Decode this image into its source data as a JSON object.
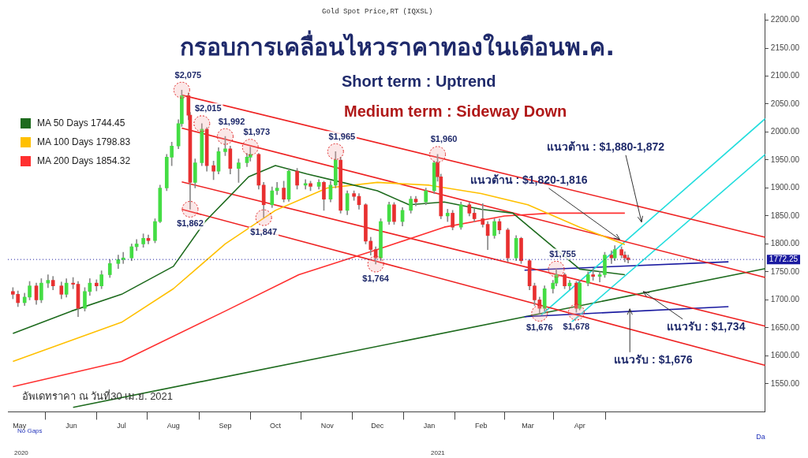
{
  "chart_data": {
    "type": "candlestick",
    "subtitle": "Gold Spot Price,RT (IQXSL)",
    "title": "กรอบการเคลื่อนไหวราคาทองในเดือนพ.ค.",
    "xlabel": "Da",
    "legend": "top left",
    "grid": false,
    "xlim": [
      "2020-04-24",
      "2021-07-21"
    ],
    "ylim": [
      1500,
      2212
    ],
    "xticks": [
      {
        "value": "2020-05-01",
        "label": "May"
      },
      {
        "value": "2020-06-01",
        "label": "Jun"
      },
      {
        "value": "2020-07-01",
        "label": "Jul"
      },
      {
        "value": "2020-08-01",
        "label": "Aug"
      },
      {
        "value": "2020-09-01",
        "label": "Sep"
      },
      {
        "value": "2020-10-01",
        "label": "Oct"
      },
      {
        "value": "2020-11-01",
        "label": "Nov"
      },
      {
        "value": "2020-12-01",
        "label": "Dec"
      },
      {
        "value": "2021-01-01",
        "label": "Jan"
      },
      {
        "value": "2021-02-01",
        "label": "Feb"
      },
      {
        "value": "2021-03-01",
        "label": "Mar"
      },
      {
        "value": "2021-04-01",
        "label": "Apr"
      }
    ],
    "yticks": [
      {
        "value": 1550,
        "label": "1550.00"
      },
      {
        "value": 1600,
        "label": "1600.00"
      },
      {
        "value": 1650,
        "label": "1650.00"
      },
      {
        "value": 1700,
        "label": "1700.00"
      },
      {
        "value": 1750,
        "label": "1750.00"
      },
      {
        "value": 1800,
        "label": "1800.00"
      },
      {
        "value": 1850,
        "label": "1850.00"
      },
      {
        "value": 1900,
        "label": "1900.00"
      },
      {
        "value": 1950,
        "label": "1950.00"
      },
      {
        "value": 2000,
        "label": "2000.00"
      },
      {
        "value": 2050,
        "label": "2050.00"
      },
      {
        "value": 2100,
        "label": "2100.00"
      },
      {
        "value": 2150,
        "label": "2150.00"
      },
      {
        "value": 2200,
        "label": "2200.00"
      }
    ],
    "x": [
      "2020-04-27",
      "2020-04-30",
      "2020-05-04",
      "2020-05-07",
      "2020-05-11",
      "2020-05-14",
      "2020-05-18",
      "2020-05-21",
      "2020-05-26",
      "2020-05-29",
      "2020-06-02",
      "2020-06-05",
      "2020-06-09",
      "2020-06-12",
      "2020-06-16",
      "2020-06-19",
      "2020-06-24",
      "2020-06-29",
      "2020-07-02",
      "2020-07-07",
      "2020-07-10",
      "2020-07-14",
      "2020-07-17",
      "2020-07-21",
      "2020-07-24",
      "2020-07-28",
      "2020-07-31",
      "2020-08-04",
      "2020-08-06",
      "2020-08-10",
      "2020-08-11",
      "2020-08-14",
      "2020-08-18",
      "2020-08-21",
      "2020-08-25",
      "2020-08-28",
      "2020-09-01",
      "2020-09-04",
      "2020-09-09",
      "2020-09-14",
      "2020-09-16",
      "2020-09-21",
      "2020-09-24",
      "2020-09-29",
      "2020-10-02",
      "2020-10-06",
      "2020-10-09",
      "2020-10-14",
      "2020-10-19",
      "2020-10-22",
      "2020-10-27",
      "2020-10-30",
      "2020-11-03",
      "2020-11-06",
      "2020-11-09",
      "2020-11-13",
      "2020-11-17",
      "2020-11-20",
      "2020-11-24",
      "2020-11-27",
      "2020-11-30",
      "2020-12-03",
      "2020-12-08",
      "2020-12-11",
      "2020-12-16",
      "2020-12-21",
      "2020-12-24",
      "2020-12-30",
      "2021-01-04",
      "2021-01-06",
      "2021-01-08",
      "2021-01-12",
      "2021-01-15",
      "2021-01-20",
      "2021-01-25",
      "2021-01-28",
      "2021-02-02",
      "2021-02-05",
      "2021-02-09",
      "2021-02-12",
      "2021-02-17",
      "2021-02-22",
      "2021-02-25",
      "2021-03-02",
      "2021-03-05",
      "2021-03-08",
      "2021-03-11",
      "2021-03-16",
      "2021-03-18",
      "2021-03-23",
      "2021-03-26",
      "2021-03-30",
      "2021-04-01",
      "2021-04-06",
      "2021-04-09",
      "2021-04-13",
      "2021-04-16",
      "2021-04-20",
      "2021-04-22",
      "2021-04-26",
      "2021-04-28",
      "2021-04-30"
    ],
    "ohlc": [
      [
        1715,
        1722,
        1702,
        1710
      ],
      [
        1710,
        1716,
        1688,
        1695
      ],
      [
        1695,
        1712,
        1690,
        1705
      ],
      [
        1705,
        1733,
        1700,
        1725
      ],
      [
        1725,
        1730,
        1692,
        1700
      ],
      [
        1700,
        1738,
        1695,
        1730
      ],
      [
        1730,
        1745,
        1722,
        1735
      ],
      [
        1735,
        1742,
        1718,
        1725
      ],
      [
        1725,
        1732,
        1702,
        1710
      ],
      [
        1710,
        1738,
        1705,
        1730
      ],
      [
        1730,
        1740,
        1720,
        1728
      ],
      [
        1728,
        1733,
        1670,
        1685
      ],
      [
        1685,
        1722,
        1680,
        1715
      ],
      [
        1715,
        1738,
        1708,
        1730
      ],
      [
        1730,
        1736,
        1716,
        1725
      ],
      [
        1725,
        1752,
        1720,
        1745
      ],
      [
        1745,
        1772,
        1740,
        1765
      ],
      [
        1765,
        1780,
        1756,
        1772
      ],
      [
        1772,
        1785,
        1765,
        1775
      ],
      [
        1775,
        1800,
        1770,
        1795
      ],
      [
        1795,
        1808,
        1788,
        1800
      ],
      [
        1800,
        1818,
        1794,
        1810
      ],
      [
        1810,
        1816,
        1800,
        1806
      ],
      [
        1806,
        1845,
        1802,
        1840
      ],
      [
        1840,
        1905,
        1838,
        1900
      ],
      [
        1900,
        1960,
        1895,
        1955
      ],
      [
        1955,
        1982,
        1940,
        1975
      ],
      [
        1975,
        2022,
        1970,
        2015
      ],
      [
        2015,
        2075,
        2010,
        2065
      ],
      [
        2065,
        2070,
        2022,
        2030
      ],
      [
        2030,
        2035,
        1862,
        1910
      ],
      [
        1910,
        1952,
        1900,
        1945
      ],
      [
        1945,
        2015,
        1940,
        2005
      ],
      [
        2005,
        2008,
        1930,
        1940
      ],
      [
        1940,
        1948,
        1915,
        1930
      ],
      [
        1930,
        1972,
        1925,
        1965
      ],
      [
        1965,
        1992,
        1958,
        1970
      ],
      [
        1970,
        1975,
        1925,
        1935
      ],
      [
        1935,
        1952,
        1910,
        1945
      ],
      [
        1945,
        1962,
        1938,
        1955
      ],
      [
        1955,
        1973,
        1948,
        1960
      ],
      [
        1960,
        1962,
        1898,
        1905
      ],
      [
        1905,
        1910,
        1847,
        1870
      ],
      [
        1870,
        1902,
        1865,
        1895
      ],
      [
        1895,
        1910,
        1888,
        1900
      ],
      [
        1900,
        1912,
        1875,
        1880
      ],
      [
        1880,
        1935,
        1876,
        1930
      ],
      [
        1930,
        1935,
        1898,
        1905
      ],
      [
        1905,
        1915,
        1898,
        1908
      ],
      [
        1908,
        1912,
        1895,
        1903
      ],
      [
        1903,
        1915,
        1898,
        1910
      ],
      [
        1910,
        1912,
        1860,
        1880
      ],
      [
        1880,
        1912,
        1875,
        1905
      ],
      [
        1905,
        1965,
        1900,
        1950
      ],
      [
        1950,
        1955,
        1855,
        1860
      ],
      [
        1860,
        1895,
        1852,
        1890
      ],
      [
        1890,
        1895,
        1878,
        1885
      ],
      [
        1885,
        1890,
        1862,
        1870
      ],
      [
        1870,
        1872,
        1800,
        1805
      ],
      [
        1805,
        1812,
        1780,
        1790
      ],
      [
        1790,
        1795,
        1764,
        1775
      ],
      [
        1775,
        1845,
        1770,
        1840
      ],
      [
        1840,
        1875,
        1835,
        1870
      ],
      [
        1870,
        1874,
        1835,
        1840
      ],
      [
        1840,
        1865,
        1832,
        1860
      ],
      [
        1860,
        1885,
        1855,
        1880
      ],
      [
        1880,
        1885,
        1868,
        1875
      ],
      [
        1875,
        1900,
        1870,
        1895
      ],
      [
        1895,
        1948,
        1890,
        1945
      ],
      [
        1945,
        1960,
        1912,
        1920
      ],
      [
        1920,
        1925,
        1845,
        1850
      ],
      [
        1850,
        1862,
        1840,
        1855
      ],
      [
        1855,
        1860,
        1825,
        1830
      ],
      [
        1830,
        1875,
        1826,
        1870
      ],
      [
        1870,
        1874,
        1850,
        1855
      ],
      [
        1855,
        1862,
        1840,
        1845
      ],
      [
        1845,
        1872,
        1830,
        1835
      ],
      [
        1835,
        1840,
        1790,
        1815
      ],
      [
        1815,
        1845,
        1810,
        1840
      ],
      [
        1840,
        1845,
        1818,
        1825
      ],
      [
        1825,
        1828,
        1768,
        1775
      ],
      [
        1775,
        1815,
        1770,
        1810
      ],
      [
        1810,
        1812,
        1765,
        1770
      ],
      [
        1770,
        1772,
        1718,
        1725
      ],
      [
        1725,
        1730,
        1690,
        1700
      ],
      [
        1700,
        1705,
        1676,
        1685
      ],
      [
        1685,
        1725,
        1680,
        1720
      ],
      [
        1720,
        1735,
        1712,
        1730
      ],
      [
        1730,
        1755,
        1725,
        1745
      ],
      [
        1745,
        1748,
        1720,
        1725
      ],
      [
        1725,
        1735,
        1718,
        1730
      ],
      [
        1730,
        1733,
        1678,
        1685
      ],
      [
        1685,
        1735,
        1682,
        1730
      ],
      [
        1730,
        1750,
        1725,
        1745
      ],
      [
        1745,
        1756,
        1735,
        1742
      ],
      [
        1742,
        1750,
        1732,
        1745
      ],
      [
        1745,
        1785,
        1740,
        1780
      ],
      [
        1780,
        1788,
        1765,
        1775
      ],
      [
        1775,
        1797,
        1770,
        1790
      ],
      [
        1790,
        1795,
        1775,
        1780
      ],
      [
        1780,
        1786,
        1768,
        1775
      ],
      [
        1775,
        1780,
        1766,
        1772
      ]
    ],
    "series": [
      {
        "type": "line",
        "name": "MA 50 Days 1744.45",
        "color": "#1e6b1e",
        "x": [
          "2020-04-27",
          "2020-06-01",
          "2020-07-01",
          "2020-08-01",
          "2020-08-20",
          "2020-09-15",
          "2020-10-01",
          "2020-10-20",
          "2020-11-10",
          "2020-12-01",
          "2020-12-20",
          "2021-01-10",
          "2021-02-01",
          "2021-02-20",
          "2021-03-10",
          "2021-04-01",
          "2021-04-28"
        ],
        "values": [
          1640,
          1680,
          1710,
          1760,
          1840,
          1920,
          1940,
          1925,
          1910,
          1895,
          1870,
          1875,
          1862,
          1855,
          1810,
          1755,
          1745
        ]
      },
      {
        "type": "line",
        "name": "MA 100 Days 1798.83",
        "color": "#ffc000",
        "x": [
          "2020-04-27",
          "2020-07-01",
          "2020-08-01",
          "2020-09-01",
          "2020-10-01",
          "2020-11-01",
          "2020-12-01",
          "2021-01-01",
          "2021-02-01",
          "2021-03-01",
          "2021-04-01",
          "2021-04-28"
        ],
        "values": [
          1590,
          1660,
          1720,
          1800,
          1860,
          1900,
          1910,
          1905,
          1890,
          1870,
          1830,
          1799
        ]
      },
      {
        "type": "line",
        "name": "MA 200 Days 1854.32",
        "color": "#ff3030",
        "x": [
          "2020-04-27",
          "2020-07-01",
          "2020-09-01",
          "2020-10-15",
          "2020-12-01",
          "2021-01-10",
          "2021-02-15",
          "2021-03-15",
          "2021-04-28"
        ],
        "values": [
          1545,
          1590,
          1680,
          1745,
          1790,
          1830,
          1850,
          1855,
          1855
        ]
      },
      {
        "type": "line",
        "color": "#ee2222",
        "x": [
          "2020-08-06",
          "2021-07-21"
        ],
        "values": [
          2066,
          1812
        ]
      },
      {
        "type": "line",
        "color": "#ee2222",
        "x": [
          "2020-08-06",
          "2021-07-21"
        ],
        "values": [
          2007,
          1740
        ]
      },
      {
        "type": "line",
        "color": "#ee2222",
        "x": [
          "2020-08-06",
          "2021-07-21"
        ],
        "values": [
          1911,
          1653
        ]
      },
      {
        "type": "line",
        "color": "#ee2222",
        "x": [
          "2020-08-06",
          "2021-07-21"
        ],
        "values": [
          1862,
          1583
        ]
      },
      {
        "type": "line",
        "color": "#22dddd",
        "x": [
          "2021-03-09",
          "2021-07-21"
        ],
        "values": [
          1673,
          2024
        ]
      },
      {
        "type": "line",
        "color": "#22dddd",
        "x": [
          "2021-03-27",
          "2021-07-21"
        ],
        "values": [
          1660,
          1960
        ]
      },
      {
        "type": "line",
        "color": "#1a1aa0",
        "x": [
          "2021-02-27",
          "2021-06-29"
        ],
        "values": [
          1753,
          1768
        ]
      },
      {
        "type": "line",
        "color": "#1a1aa0",
        "x": [
          "2021-02-27",
          "2021-06-29"
        ],
        "values": [
          1670,
          1688
        ]
      },
      {
        "type": "line",
        "color": "#1e6b1e",
        "x": [
          "2020-06-02",
          "2021-07-21"
        ],
        "values": [
          1508,
          1756
        ]
      }
    ],
    "ref_lines": [
      {
        "axis": "y",
        "value": 1772.25,
        "label": "1772.25",
        "color": "#1a1aa0"
      }
    ],
    "annotations": [
      "Short term : Uptrend",
      "Medium term : Sideway Down",
      "อัพเดทราคา ณ วันที่30 เม.ย. 2021",
      "No Gaps",
      "2020",
      "2021",
      {
        "text": "$2,075",
        "x": "2020-08-06",
        "y": 2075
      },
      {
        "text": "$2,015",
        "x": "2020-08-18",
        "y": 2015
      },
      {
        "text": "$1,992",
        "x": "2020-09-01",
        "y": 1992
      },
      {
        "text": "$1,973",
        "x": "2020-09-16",
        "y": 1973
      },
      {
        "text": "$1,862",
        "x": "2020-08-11",
        "y": 1862
      },
      {
        "text": "$1,847",
        "x": "2020-09-24",
        "y": 1847
      },
      {
        "text": "$1,965",
        "x": "2020-11-06",
        "y": 1965
      },
      {
        "text": "$1,764",
        "x": "2020-11-30",
        "y": 1764
      },
      {
        "text": "$1,960",
        "x": "2021-01-06",
        "y": 1960
      },
      {
        "text": "$1,755",
        "x": "2021-03-18",
        "y": 1755
      },
      {
        "text": "$1,676",
        "x": "2021-03-08",
        "y": 1676
      },
      {
        "text": "$1,678",
        "x": "2021-03-30",
        "y": 1678
      },
      {
        "text": "แนวต้าน : $1,880-1,872",
        "x": "2021-05-08",
        "y": 1839
      },
      {
        "text": "แนวต้าน : $1,820-1,816",
        "x": "2021-04-25",
        "y": 1808
      },
      {
        "text": "แนวรับ : $1,734",
        "x": "2021-05-09",
        "y": 1715
      },
      {
        "text": "แนวรับ : $1,676",
        "x": "2021-05-01",
        "y": 1684
      }
    ]
  }
}
